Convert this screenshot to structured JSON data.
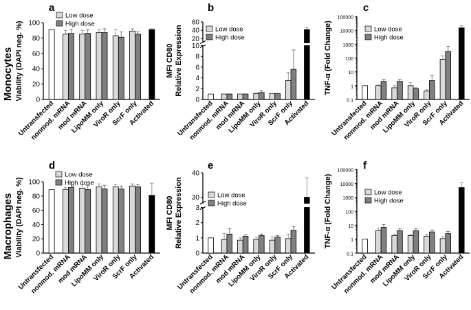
{
  "row_labels": [
    "Monocytes",
    "Macrophages"
  ],
  "legend": {
    "low": "Low dose",
    "high": "High dose"
  },
  "colors": {
    "untransfected": "#ffffff",
    "low": "#d9d9d9",
    "high": "#808080",
    "activated": "#000000",
    "axis": "#000000"
  },
  "chart_data": [
    {
      "panel": "a",
      "type": "bar",
      "scale": "linear",
      "ylabel": "Viability (DAPI neg. %)",
      "yticks": [
        0,
        20,
        40,
        60,
        80,
        100
      ],
      "ylim": [
        0,
        100
      ],
      "categories": [
        "Untransfected",
        "nonmod. mRNA",
        "mod mRNA",
        "LipoMM only",
        "ViroR only",
        "ScrF only",
        "Activated"
      ],
      "series": [
        {
          "name": "Low dose",
          "values": [
            91,
            85,
            85,
            87,
            83,
            89,
            91
          ],
          "errors": [
            0,
            5,
            5,
            4,
            8,
            3,
            1
          ]
        },
        {
          "name": "High dose",
          "values": [
            null,
            86,
            86,
            87,
            81,
            85,
            null
          ],
          "errors": [
            0,
            5,
            5,
            5,
            7,
            3,
            0
          ]
        }
      ]
    },
    {
      "panel": "b",
      "type": "bar",
      "scale": "broken",
      "ylabel": [
        "MFI CD80",
        "Relative Expression"
      ],
      "yticks": [
        0,
        2,
        4,
        6,
        8,
        10,
        20,
        40,
        60
      ],
      "categories": [
        "Untransfected",
        "nonmod. mRNA",
        "mod mRNA",
        "LipoMM only",
        "ViroR only",
        "ScrF only",
        "Activated"
      ],
      "series": [
        {
          "name": "Low dose",
          "values": [
            1,
            1,
            1,
            1.1,
            1.1,
            3.5,
            42
          ],
          "errors": [
            0,
            0.05,
            0.05,
            0.1,
            0.05,
            1.5,
            4
          ]
        },
        {
          "name": "High dose",
          "values": [
            null,
            1,
            1,
            1.3,
            1.1,
            5.6,
            null
          ],
          "errors": [
            0,
            0.05,
            0.05,
            0.3,
            0.05,
            3.6,
            0
          ]
        }
      ]
    },
    {
      "panel": "c",
      "type": "bar",
      "scale": "log",
      "ylabel": "TNF-α (Fold Change)",
      "yticks": [
        0.1,
        1,
        10,
        100,
        1000,
        10000,
        100000
      ],
      "ytick_labels": [
        "0.1",
        "1",
        "10",
        "100",
        "1000",
        "10000",
        "100000"
      ],
      "categories": [
        "Untransfected",
        "nonmod. mRNA",
        "mod mRNA",
        "LipoMM only",
        "ViroR only",
        "ScrF only",
        "Activated"
      ],
      "series": [
        {
          "name": "Low dose",
          "values": [
            1,
            1,
            0.7,
            1,
            0.4,
            80,
            15000
          ],
          "errors": [
            0,
            0.1,
            0.3,
            0.6,
            0.1,
            60,
            6000
          ]
        },
        {
          "name": "High dose",
          "values": [
            null,
            2,
            2,
            0.6,
            2.3,
            300,
            null
          ],
          "errors": [
            0,
            0.8,
            0.8,
            0.1,
            3,
            400,
            0
          ]
        }
      ]
    },
    {
      "panel": "d",
      "type": "bar",
      "scale": "linear",
      "ylabel": "Viability (DAPI neg. %)",
      "yticks": [
        0,
        20,
        40,
        60,
        80,
        100
      ],
      "ylim": [
        0,
        100
      ],
      "categories": [
        "Untransfected",
        "nonmod. mRNA",
        "mod mRNA",
        "LipoMM only",
        "ViroR only",
        "ScrF only",
        "Activated"
      ],
      "series": [
        {
          "name": "Low dose",
          "values": [
            89,
            89,
            91,
            93,
            93,
            94,
            81
          ],
          "errors": [
            0,
            3,
            5,
            4,
            3,
            3,
            17
          ]
        },
        {
          "name": "High dose",
          "values": [
            null,
            92,
            89,
            90,
            90,
            93,
            null
          ],
          "errors": [
            0,
            8,
            6,
            5,
            4,
            3,
            0
          ]
        }
      ]
    },
    {
      "panel": "e",
      "type": "bar",
      "scale": "broken",
      "ylabel": [
        "MFI CD80",
        "Relative Expression"
      ],
      "yticks": [
        0,
        1,
        2,
        3,
        30,
        40
      ],
      "categories": [
        "Untransfected",
        "nonmod. mRNA",
        "mod mRNA",
        "LipoMM only",
        "ViroR only",
        "ScrF only",
        "Activated"
      ],
      "series": [
        {
          "name": "Low dose",
          "values": [
            1,
            0.9,
            0.85,
            0.9,
            0.85,
            0.95,
            30
          ],
          "errors": [
            0,
            0.4,
            0.15,
            0.15,
            0.2,
            0.3,
            8
          ]
        },
        {
          "name": "High dose",
          "values": [
            null,
            1.25,
            1.1,
            1.15,
            1.05,
            1.5,
            null
          ],
          "errors": [
            0,
            0.35,
            0.1,
            0.1,
            0.1,
            0.25,
            0
          ]
        }
      ]
    },
    {
      "panel": "f",
      "type": "bar",
      "scale": "log",
      "ylabel": "TNF-α (Fold Change)",
      "yticks": [
        0.1,
        1,
        10,
        100,
        1000,
        10000,
        100000
      ],
      "ytick_labels": [
        "0.1",
        "1",
        "10",
        "100",
        "1000",
        "10000",
        "100000"
      ],
      "categories": [
        "Untransfected",
        "nonmod. mRNA",
        "mod mRNA",
        "LipoMM only",
        "ViroR only",
        "ScrF only",
        "Activated"
      ],
      "series": [
        {
          "name": "Low dose",
          "values": [
            1,
            4,
            1.8,
            1.8,
            1.6,
            1.1,
            5000
          ],
          "errors": [
            0,
            2,
            0.5,
            0.4,
            0.6,
            0.4,
            6000
          ]
        },
        {
          "name": "High dose",
          "values": [
            null,
            7,
            4,
            4,
            3.3,
            2.5,
            null
          ],
          "errors": [
            0,
            4,
            1.5,
            1.5,
            1.3,
            1,
            0
          ]
        }
      ]
    }
  ]
}
